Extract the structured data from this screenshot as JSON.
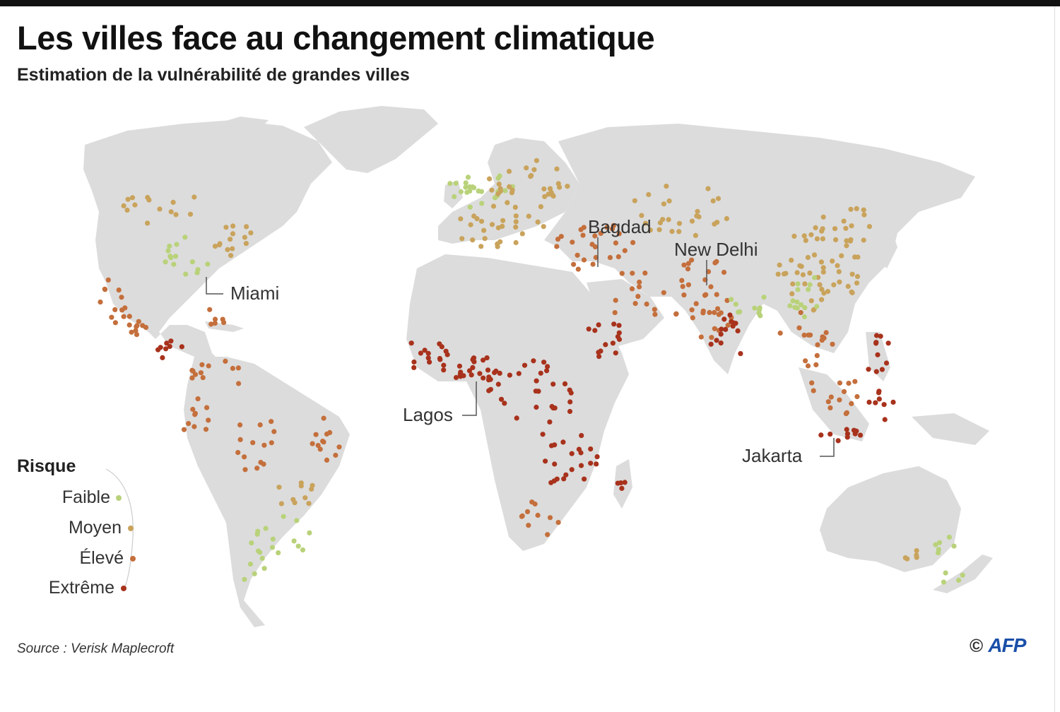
{
  "header": {
    "title": "Les villes face au changement climatique",
    "subtitle": "Estimation de la vulnérabilité de grandes villes"
  },
  "legend": {
    "title": "Risque",
    "items": [
      {
        "label": "Faible",
        "color": "#b9d27a"
      },
      {
        "label": "Moyen",
        "color": "#c9a35c"
      },
      {
        "label": "Élevé",
        "color": "#c46f3c"
      },
      {
        "label": "Extrême",
        "color": "#a8321c"
      }
    ]
  },
  "cities": {
    "miami": "Miami",
    "bagdad": "Bagdad",
    "new_delhi": "New Delhi",
    "lagos": "Lagos",
    "jakarta": "Jakarta"
  },
  "footer": {
    "source": "Source : Verisk Maplecroft",
    "copyright": "©",
    "brand": "AFP"
  },
  "colors": {
    "land": "#dcdcdc",
    "low": "#b9d27a",
    "medium": "#c9a35c",
    "high": "#c46f3c",
    "extreme": "#a8321c"
  }
}
